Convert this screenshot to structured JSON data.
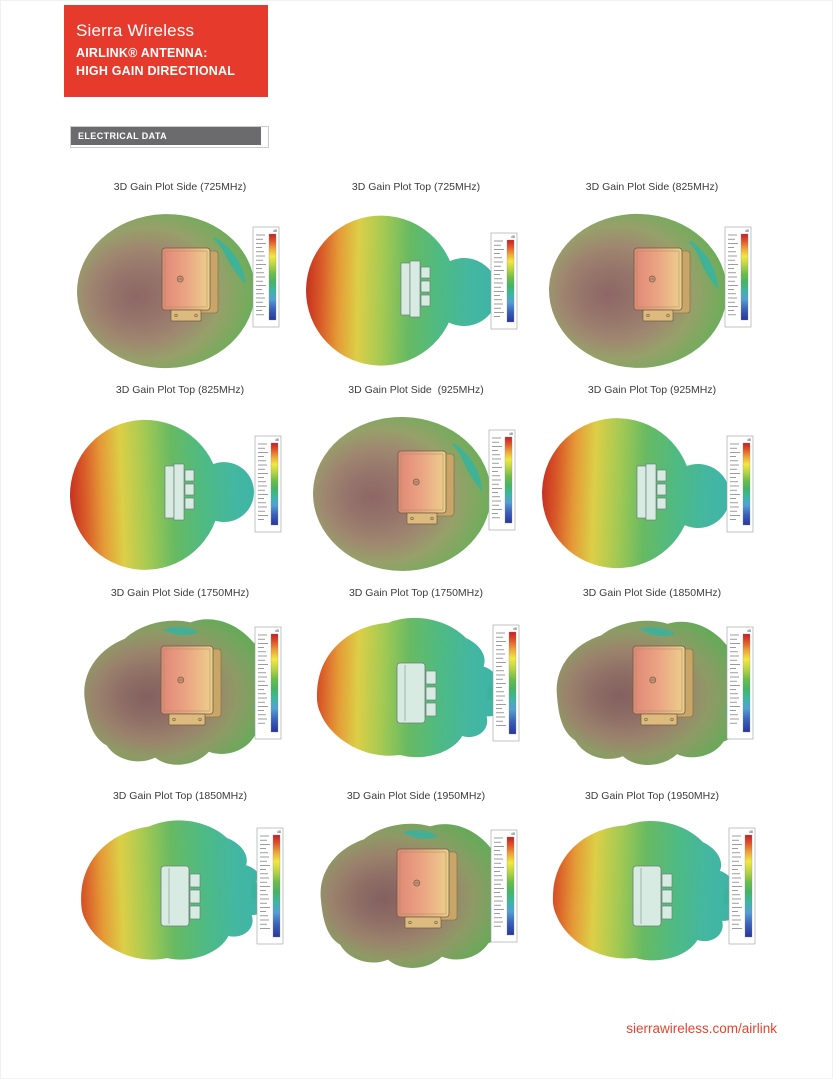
{
  "header": {
    "brand": "Sierra Wireless",
    "line1": "AIRLINK® ANTENNA:",
    "line2": "HIGH GAIN DIRECTIONAL",
    "bg_color": "#e63a2c",
    "text_color": "#ffffff"
  },
  "section": {
    "label": "ELECTRICAL DATA",
    "bg_color": "#6b6b6d",
    "text_color": "#ffffff"
  },
  "legend": {
    "unit": "dB"
  },
  "plots": [
    {
      "title": "3D Gain Plot Side (725MHz)",
      "view": "side",
      "shape": "smooth",
      "frequency": "725MHz"
    },
    {
      "title": "3D Gain Plot Top (725MHz)",
      "view": "top",
      "shape": "smooth",
      "frequency": "725MHz"
    },
    {
      "title": "3D Gain Plot Side (825MHz)",
      "view": "side",
      "shape": "smooth",
      "frequency": "825MHz"
    },
    {
      "title": "3D Gain Plot Top (825MHz)",
      "view": "top",
      "shape": "smooth",
      "frequency": "825MHz"
    },
    {
      "title": "3D Gain Plot Side  (925MHz)",
      "view": "side",
      "shape": "smooth",
      "frequency": "925MHz"
    },
    {
      "title": "3D Gain Plot Top (925MHz)",
      "view": "top",
      "shape": "smooth",
      "frequency": "925MHz"
    },
    {
      "title": "3D Gain Plot Side (1750MHz)",
      "view": "side",
      "shape": "lumpy",
      "frequency": "1750MHz"
    },
    {
      "title": "3D Gain Plot Top (1750MHz)",
      "view": "top",
      "shape": "lumpy",
      "frequency": "1750MHz"
    },
    {
      "title": "3D Gain Plot Side (1850MHz)",
      "view": "side",
      "shape": "lumpy",
      "frequency": "1850MHz"
    },
    {
      "title": "3D Gain Plot Top (1850MHz)",
      "view": "top",
      "shape": "lumpy",
      "frequency": "1850MHz"
    },
    {
      "title": "3D Gain Plot Side (1950MHz)",
      "view": "side",
      "shape": "lumpy",
      "frequency": "1950MHz"
    },
    {
      "title": "3D Gain Plot Top (1950MHz)",
      "view": "top",
      "shape": "lumpy",
      "frequency": "1950MHz"
    }
  ],
  "footer": {
    "link": "sierrawireless.com/airlink",
    "color": "#e8432e"
  },
  "palettes": {
    "legend_rainbow": [
      "#c61f26",
      "#e0522a",
      "#eda43a",
      "#f0e93f",
      "#b8d344",
      "#6cbd4a",
      "#45b464",
      "#3cb6a4",
      "#52a0d4",
      "#3b63bb",
      "#28359e"
    ],
    "side_radial": [
      "#8d6764",
      "#96746b",
      "#9f8770",
      "#97a06a",
      "#77ab5d",
      "#55b052",
      "#3fab4b"
    ],
    "side_radial_hi": [
      "#84605e",
      "#8f6e66",
      "#9a826c",
      "#8f9a66",
      "#6fa75c",
      "#52ae52",
      "#3fa84c"
    ],
    "top_linear": [
      "#c83421",
      "#d85a28",
      "#e59b37",
      "#dccf47",
      "#a6ca52",
      "#67ba62",
      "#4eba84",
      "#43b7a2",
      "#3db3a8"
    ],
    "accent_teal": "#38b29d",
    "antenna_side": {
      "face_left": "#e08777",
      "face_mid": "#eba583",
      "face_right": "#ecd08d",
      "edge": "#6e5f41",
      "side_face": "#c9a567",
      "tab": "#ddba7e"
    },
    "antenna_top": {
      "fill": "#d8ebe3",
      "stroke": "#6b7f78"
    }
  }
}
